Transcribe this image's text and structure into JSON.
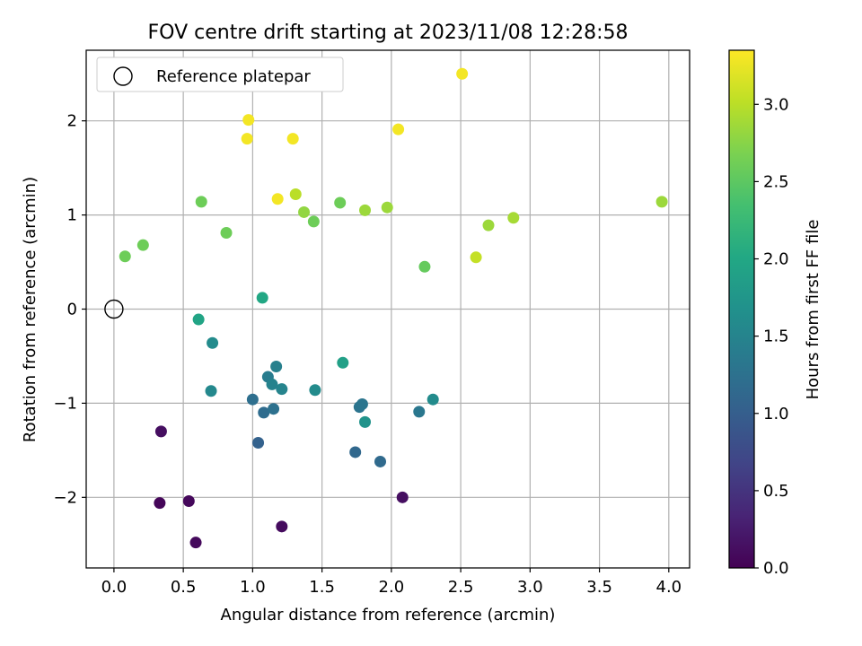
{
  "chart_data": {
    "type": "scatter",
    "title": "FOV centre drift starting at 2023/11/08 12:28:58",
    "xlabel": "Angular distance from reference (arcmin)",
    "ylabel": "Rotation from reference (arcmin)",
    "colorbar_label": "Hours from first FF file",
    "xlim": [
      -0.2,
      4.15
    ],
    "ylim": [
      -2.75,
      2.75
    ],
    "clim": [
      0.0,
      3.35
    ],
    "xticks": [
      "0.0",
      "0.5",
      "1.0",
      "1.5",
      "2.0",
      "2.5",
      "3.0",
      "3.5",
      "4.0"
    ],
    "xtick_values": [
      0,
      0.5,
      1.0,
      1.5,
      2.0,
      2.5,
      3.0,
      3.5,
      4.0
    ],
    "yticks": [
      "−2",
      "−1",
      "0",
      "1",
      "2"
    ],
    "ytick_values": [
      -2,
      -1,
      0,
      1,
      2
    ],
    "cticks": [
      "0.0",
      "0.5",
      "1.0",
      "1.5",
      "2.0",
      "2.5",
      "3.0"
    ],
    "ctick_values": [
      0,
      0.5,
      1.0,
      1.5,
      2.0,
      2.5,
      3.0
    ],
    "grid": true,
    "colormap": "viridis",
    "legend": {
      "placement": "top-left",
      "label": "Reference platepar",
      "marker": "open-circle"
    },
    "reference_point": {
      "x": 0,
      "y": 0
    },
    "points": [
      {
        "x": 0.33,
        "y": -2.06,
        "c": 0.05
      },
      {
        "x": 0.54,
        "y": -2.04,
        "c": 0.07
      },
      {
        "x": 0.59,
        "y": -2.48,
        "c": 0.08
      },
      {
        "x": 1.21,
        "y": -2.31,
        "c": 0.1
      },
      {
        "x": 0.34,
        "y": -1.3,
        "c": 0.12
      },
      {
        "x": 2.08,
        "y": -2.0,
        "c": 0.13
      },
      {
        "x": 1.04,
        "y": -1.42,
        "c": 1.05
      },
      {
        "x": 1.74,
        "y": -1.52,
        "c": 1.12
      },
      {
        "x": 1.92,
        "y": -1.62,
        "c": 1.15
      },
      {
        "x": 1.08,
        "y": -1.1,
        "c": 1.18
      },
      {
        "x": 1.0,
        "y": -0.96,
        "c": 1.22
      },
      {
        "x": 1.15,
        "y": -1.06,
        "c": 1.25
      },
      {
        "x": 1.77,
        "y": -1.04,
        "c": 1.28
      },
      {
        "x": 1.79,
        "y": -1.01,
        "c": 1.3
      },
      {
        "x": 2.2,
        "y": -1.09,
        "c": 1.33
      },
      {
        "x": 1.11,
        "y": -0.72,
        "c": 1.4
      },
      {
        "x": 1.17,
        "y": -0.61,
        "c": 1.45
      },
      {
        "x": 1.21,
        "y": -0.85,
        "c": 1.5
      },
      {
        "x": 1.14,
        "y": -0.8,
        "c": 1.48
      },
      {
        "x": 0.7,
        "y": -0.87,
        "c": 1.55
      },
      {
        "x": 0.71,
        "y": -0.36,
        "c": 1.6
      },
      {
        "x": 1.45,
        "y": -0.86,
        "c": 1.6
      },
      {
        "x": 2.3,
        "y": -0.96,
        "c": 1.6
      },
      {
        "x": 1.81,
        "y": -1.2,
        "c": 1.7
      },
      {
        "x": 1.65,
        "y": -0.57,
        "c": 1.9
      },
      {
        "x": 0.61,
        "y": -0.11,
        "c": 1.95
      },
      {
        "x": 1.07,
        "y": 0.12,
        "c": 2.0
      },
      {
        "x": 0.08,
        "y": 0.56,
        "c": 2.6
      },
      {
        "x": 0.21,
        "y": 0.68,
        "c": 2.6
      },
      {
        "x": 0.63,
        "y": 1.14,
        "c": 2.6
      },
      {
        "x": 0.81,
        "y": 0.81,
        "c": 2.6
      },
      {
        "x": 1.44,
        "y": 0.93,
        "c": 2.6
      },
      {
        "x": 1.63,
        "y": 1.13,
        "c": 2.6
      },
      {
        "x": 2.24,
        "y": 0.45,
        "c": 2.55
      },
      {
        "x": 1.37,
        "y": 1.03,
        "c": 2.8
      },
      {
        "x": 1.81,
        "y": 1.05,
        "c": 2.85
      },
      {
        "x": 1.97,
        "y": 1.08,
        "c": 2.85
      },
      {
        "x": 2.7,
        "y": 0.89,
        "c": 2.85
      },
      {
        "x": 2.88,
        "y": 0.97,
        "c": 2.9
      },
      {
        "x": 3.95,
        "y": 1.14,
        "c": 2.85
      },
      {
        "x": 1.31,
        "y": 1.22,
        "c": 3.0
      },
      {
        "x": 2.61,
        "y": 0.55,
        "c": 3.05
      },
      {
        "x": 0.96,
        "y": 1.81,
        "c": 3.3
      },
      {
        "x": 0.97,
        "y": 2.01,
        "c": 3.3
      },
      {
        "x": 1.29,
        "y": 1.81,
        "c": 3.3
      },
      {
        "x": 1.18,
        "y": 1.17,
        "c": 3.3
      },
      {
        "x": 2.05,
        "y": 1.91,
        "c": 3.3
      },
      {
        "x": 2.51,
        "y": 2.5,
        "c": 3.3
      }
    ]
  }
}
